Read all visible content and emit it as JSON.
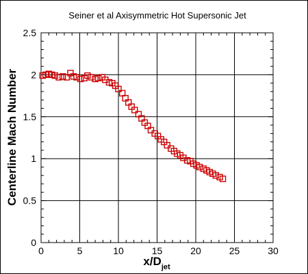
{
  "chart_data": {
    "type": "scatter",
    "title": "Seiner et al Axisymmetric Hot Supersonic Jet",
    "xlabel": "x/D",
    "xlabel_sub": "jet",
    "ylabel": "Centerline Mach Number",
    "xlim": [
      0,
      30
    ],
    "ylim": [
      0,
      2.5
    ],
    "xticks": [
      0,
      5,
      10,
      15,
      20,
      25,
      30
    ],
    "yticks": [
      0,
      0.5,
      1,
      1.5,
      2,
      2.5
    ],
    "ytick_labels": [
      "0",
      "0.5",
      "1",
      "1.5",
      "2",
      "2.5"
    ],
    "grid": true,
    "marker": "open-square",
    "color": "#cc0000",
    "series": [
      {
        "x": [
          0.2,
          0.6,
          1.0,
          1.4,
          1.8,
          2.3,
          2.8,
          3.3,
          3.8,
          4.2,
          4.6,
          5.1,
          5.6,
          6.0,
          6.5,
          7.0,
          7.4,
          7.9,
          8.3,
          8.8,
          9.2,
          9.6,
          10.0,
          10.5,
          10.9,
          11.3,
          11.7,
          12.1,
          12.6,
          13.0,
          13.4,
          13.8,
          14.2,
          14.7,
          15.1,
          15.5,
          15.9,
          16.3,
          16.8,
          17.2,
          17.6,
          18.0,
          18.4,
          18.9,
          19.3,
          19.7,
          20.1,
          20.5,
          21.0,
          21.4,
          21.8,
          22.2,
          22.6,
          23.1,
          23.5
        ],
        "y": [
          1.99,
          2.0,
          2.01,
          2.0,
          1.99,
          1.97,
          1.98,
          1.97,
          2.02,
          1.98,
          1.97,
          1.95,
          1.96,
          1.99,
          1.97,
          1.95,
          1.96,
          1.97,
          1.94,
          1.91,
          1.9,
          1.87,
          1.83,
          1.78,
          1.72,
          1.67,
          1.62,
          1.58,
          1.53,
          1.48,
          1.43,
          1.39,
          1.34,
          1.3,
          1.27,
          1.23,
          1.2,
          1.16,
          1.12,
          1.09,
          1.06,
          1.04,
          1.01,
          0.98,
          0.97,
          0.94,
          0.92,
          0.9,
          0.88,
          0.86,
          0.84,
          0.82,
          0.8,
          0.78,
          0.76
        ]
      }
    ]
  }
}
